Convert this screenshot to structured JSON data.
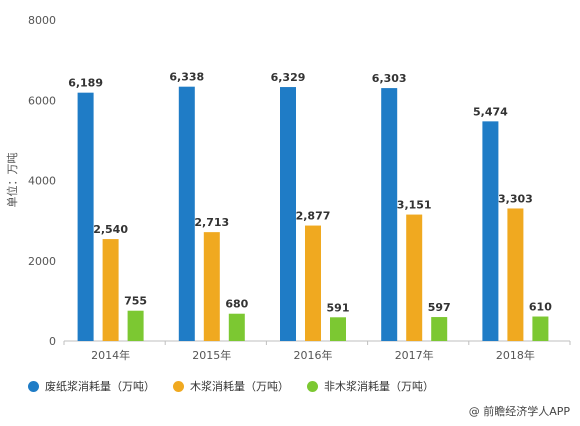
{
  "chart_data": {
    "type": "bar",
    "categories": [
      "2014年",
      "2015年",
      "2016年",
      "2017年",
      "2018年"
    ],
    "series": [
      {
        "name": "废纸浆消耗量（万吨）",
        "values": [
          6189,
          6338,
          6329,
          6303,
          5474
        ],
        "labels": [
          "6,189",
          "6,338",
          "6,329",
          "6,303",
          "5,474"
        ],
        "color": "#1f7cc6"
      },
      {
        "name": "木浆消耗量（万吨）",
        "values": [
          2540,
          2713,
          2877,
          3151,
          3303
        ],
        "labels": [
          "2,540",
          "2,713",
          "2,877",
          "3,151",
          "3,303"
        ],
        "color": "#f0a920"
      },
      {
        "name": "非木浆消耗量（万吨）",
        "values": [
          755,
          680,
          591,
          597,
          610
        ],
        "labels": [
          "755",
          "680",
          "591",
          "597",
          "610"
        ],
        "color": "#7cc832"
      }
    ],
    "ylabel": "单位：万吨",
    "ylim": [
      0,
      8000
    ],
    "yticks": [
      "0",
      "2000",
      "4000",
      "6000",
      "8000"
    ],
    "grid": false,
    "legend_position": "bottom"
  },
  "source": "@ 前瞻经济学人APP"
}
